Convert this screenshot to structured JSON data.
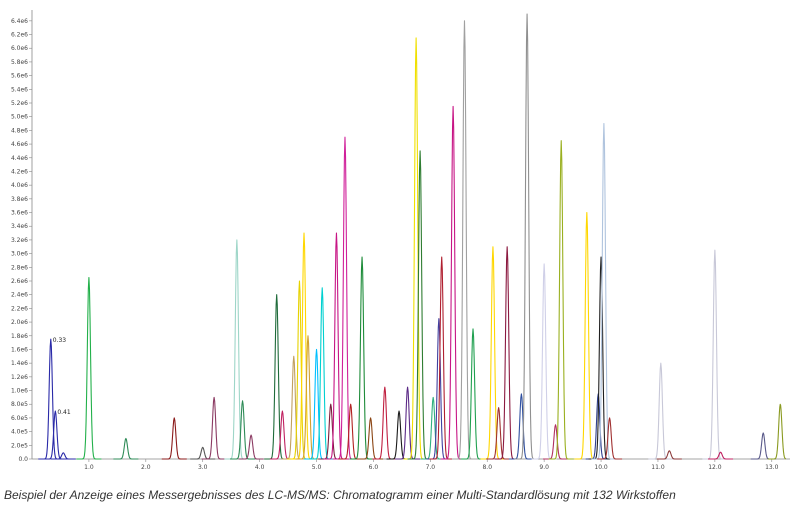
{
  "caption": "Beispiel der Anzeige eines Messergebnisses des LC-MS/MS: Chromatogramm einer Multi-Standardlösung mit 132 Wirkstoffen",
  "chart_data": {
    "type": "line",
    "title": "",
    "xlabel": "",
    "ylabel": "",
    "xlim": [
      0.0,
      13.25
    ],
    "ylim": [
      0,
      6500000
    ],
    "grid": false,
    "legend": "none",
    "x_ticks": [
      "1.0",
      "2.0",
      "3.0",
      "4.0",
      "5.0",
      "6.0",
      "7.0",
      "8.0",
      "9.0",
      "10.0",
      "11.0",
      "12.0",
      "13.0"
    ],
    "y_ticks": [
      "0.0",
      "2.0e5",
      "4.0e5",
      "6.0e5",
      "8.0e5",
      "1.0e6",
      "1.2e6",
      "1.4e6",
      "1.6e6",
      "1.8e6",
      "2.0e6",
      "2.2e6",
      "2.4e6",
      "2.6e6",
      "2.8e6",
      "3.0e6",
      "3.2e6",
      "3.4e6",
      "3.6e6",
      "3.8e6",
      "4.0e6",
      "4.2e6",
      "4.4e6",
      "4.6e6",
      "4.8e6",
      "5.0e6",
      "5.2e6",
      "5.4e6",
      "5.6e6",
      "5.8e6",
      "6.0e6",
      "6.2e6",
      "6.4e6"
    ],
    "annotations": [
      {
        "text": "0.33",
        "x": 0.33,
        "y": 1750000
      },
      {
        "text": "0.41",
        "x": 0.41,
        "y": 700000
      }
    ],
    "series": [
      {
        "rt": 0.33,
        "height": 1750000,
        "color": "#2a2aa8"
      },
      {
        "rt": 0.41,
        "height": 700000,
        "color": "#2a2aa8"
      },
      {
        "rt": 0.55,
        "height": 90000,
        "color": "#2a2aa8"
      },
      {
        "rt": 1.0,
        "height": 2650000,
        "color": "#22b04a"
      },
      {
        "rt": 1.65,
        "height": 300000,
        "color": "#2e8b57"
      },
      {
        "rt": 2.5,
        "height": 600000,
        "color": "#8b1a1a"
      },
      {
        "rt": 3.0,
        "height": 170000,
        "color": "#555555"
      },
      {
        "rt": 3.2,
        "height": 900000,
        "color": "#8b3a62"
      },
      {
        "rt": 3.6,
        "height": 3200000,
        "color": "#9ed6c8"
      },
      {
        "rt": 3.7,
        "height": 850000,
        "color": "#2e8b57"
      },
      {
        "rt": 3.85,
        "height": 350000,
        "color": "#8b3a62"
      },
      {
        "rt": 4.3,
        "height": 2400000,
        "color": "#1f6b3a"
      },
      {
        "rt": 4.4,
        "height": 700000,
        "color": "#c02060"
      },
      {
        "rt": 4.6,
        "height": 1500000,
        "color": "#c0a060"
      },
      {
        "rt": 4.7,
        "height": 2600000,
        "color": "#e6d200"
      },
      {
        "rt": 4.78,
        "height": 3300000,
        "color": "#ffd700"
      },
      {
        "rt": 4.85,
        "height": 1800000,
        "color": "#d0a030"
      },
      {
        "rt": 5.0,
        "height": 1600000,
        "color": "#00bfff"
      },
      {
        "rt": 5.1,
        "height": 2500000,
        "color": "#00d0d0"
      },
      {
        "rt": 5.25,
        "height": 800000,
        "color": "#7a1f3d"
      },
      {
        "rt": 5.35,
        "height": 3300000,
        "color": "#c71585"
      },
      {
        "rt": 5.5,
        "height": 4700000,
        "color": "#d0209a"
      },
      {
        "rt": 5.6,
        "height": 800000,
        "color": "#b22222"
      },
      {
        "rt": 5.8,
        "height": 2950000,
        "color": "#1e8c3a"
      },
      {
        "rt": 5.95,
        "height": 600000,
        "color": "#8b4513"
      },
      {
        "rt": 6.2,
        "height": 1050000,
        "color": "#c02040"
      },
      {
        "rt": 6.45,
        "height": 700000,
        "color": "#1a1a1a"
      },
      {
        "rt": 6.6,
        "height": 1050000,
        "color": "#5b2a86"
      },
      {
        "rt": 6.75,
        "height": 6150000,
        "color": "#f0e000"
      },
      {
        "rt": 6.82,
        "height": 4500000,
        "color": "#2f7d32"
      },
      {
        "rt": 7.05,
        "height": 900000,
        "color": "#30b080"
      },
      {
        "rt": 7.15,
        "height": 2050000,
        "color": "#4040a0"
      },
      {
        "rt": 7.2,
        "height": 2950000,
        "color": "#b02030"
      },
      {
        "rt": 7.4,
        "height": 5150000,
        "color": "#c71585"
      },
      {
        "rt": 7.6,
        "height": 6400000,
        "color": "#a0a0a0"
      },
      {
        "rt": 7.75,
        "height": 1900000,
        "color": "#20a050"
      },
      {
        "rt": 8.1,
        "height": 3100000,
        "color": "#ffd700"
      },
      {
        "rt": 8.2,
        "height": 750000,
        "color": "#a03030"
      },
      {
        "rt": 8.35,
        "height": 3100000,
        "color": "#8b1a40"
      },
      {
        "rt": 8.6,
        "height": 950000,
        "color": "#3050a0"
      },
      {
        "rt": 8.7,
        "height": 6500000,
        "color": "#909090"
      },
      {
        "rt": 9.0,
        "height": 2850000,
        "color": "#d0d0e8"
      },
      {
        "rt": 9.2,
        "height": 500000,
        "color": "#b03060"
      },
      {
        "rt": 9.3,
        "height": 4650000,
        "color": "#9ab020"
      },
      {
        "rt": 9.75,
        "height": 3600000,
        "color": "#ffd700"
      },
      {
        "rt": 9.95,
        "height": 950000,
        "color": "#304090"
      },
      {
        "rt": 10.0,
        "height": 2950000,
        "color": "#202020"
      },
      {
        "rt": 10.05,
        "height": 4900000,
        "color": "#b0c4de"
      },
      {
        "rt": 10.15,
        "height": 600000,
        "color": "#a03030"
      },
      {
        "rt": 11.05,
        "height": 1400000,
        "color": "#c8c8d8"
      },
      {
        "rt": 11.2,
        "height": 120000,
        "color": "#8b3a3a"
      },
      {
        "rt": 12.0,
        "height": 3050000,
        "color": "#c8c8d8"
      },
      {
        "rt": 12.1,
        "height": 100000,
        "color": "#c02060"
      },
      {
        "rt": 12.85,
        "height": 380000,
        "color": "#5a5a8a"
      },
      {
        "rt": 13.15,
        "height": 800000,
        "color": "#8a9a20"
      }
    ]
  }
}
